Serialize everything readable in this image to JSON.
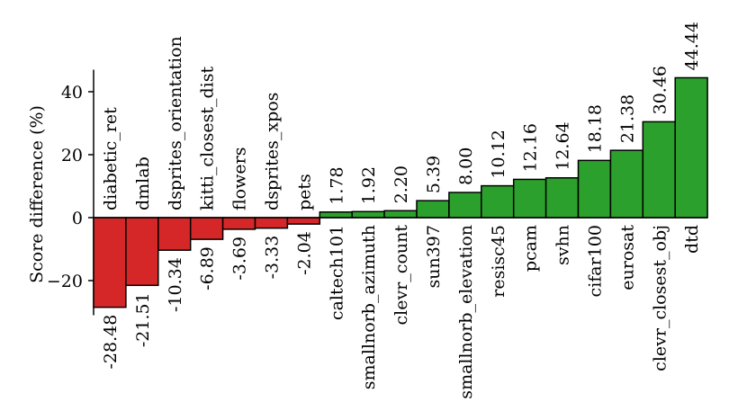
{
  "chart_data": {
    "type": "bar",
    "ylabel": "Score difference (%)",
    "yticks": [
      -20,
      0,
      20,
      40
    ],
    "ylim": [
      -31,
      47
    ],
    "grid": false,
    "neg_color": "#d62728",
    "pos_color": "#2ca02c",
    "categories": [
      "diabetic_ret",
      "dmlab",
      "dsprites_orientation",
      "kitti_closest_dist",
      "flowers",
      "dsprites_xpos",
      "pets",
      "caltech101",
      "smallnorb_azimuth",
      "clevr_count",
      "sun397",
      "smallnorb_elevation",
      "resisc45",
      "pcam",
      "svhn",
      "cifar100",
      "eurosat",
      "clevr_closest_obj",
      "dtd"
    ],
    "values": [
      -28.48,
      -21.51,
      -10.34,
      -6.89,
      -3.69,
      -3.33,
      -2.04,
      1.78,
      1.92,
      2.2,
      5.39,
      8.0,
      10.12,
      12.16,
      12.64,
      18.18,
      21.38,
      30.46,
      44.44
    ],
    "value_labels": [
      "-28.48",
      "-21.51",
      "-10.34",
      "-6.89",
      "-3.69",
      "-3.33",
      "-2.04",
      "1.78",
      "1.92",
      "2.20",
      "5.39",
      "8.00",
      "10.12",
      "12.16",
      "12.64",
      "18.18",
      "21.38",
      "30.46",
      "44.44"
    ]
  }
}
